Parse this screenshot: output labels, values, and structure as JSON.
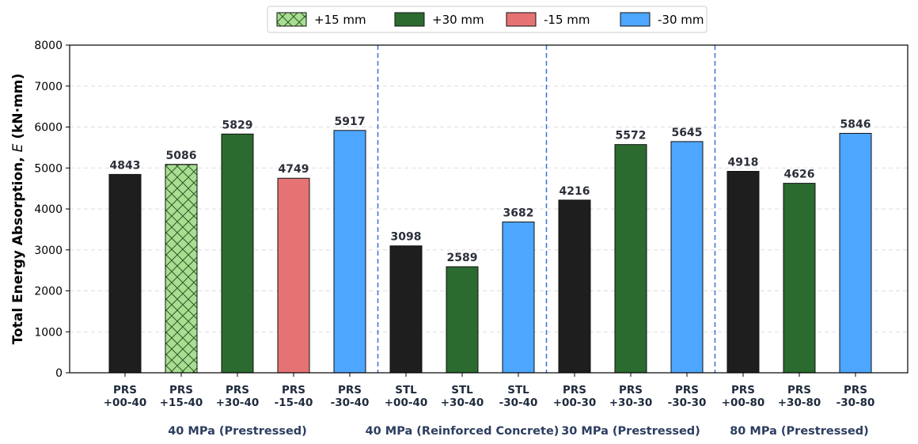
{
  "chart_data": {
    "type": "bar",
    "title": "",
    "xlabel": "",
    "ylabel_prefix": "Total Energy Absorption, ",
    "ylabel_var": "E",
    "ylabel_unit": " (kN·mm)",
    "ylim": [
      0,
      8000
    ],
    "yticks": [
      "0",
      "1000",
      "2000",
      "3000",
      "4000",
      "5000",
      "6000",
      "7000",
      "8000"
    ],
    "grid": "horizontal dashed",
    "legend_position": "top-center",
    "legend": [
      {
        "label": "+15 mm",
        "color": "#a8dd92",
        "hatch": true
      },
      {
        "label": "+30 mm",
        "color": "#2b6b2f",
        "hatch": false
      },
      {
        "label": "-15 mm",
        "color": "#e57373",
        "hatch": false
      },
      {
        "label": "-30 mm",
        "color": "#4da6ff",
        "hatch": false
      }
    ],
    "bars": [
      {
        "line1": "PRS",
        "line2": "+00-40",
        "value": 4843,
        "label": "4843",
        "color": "#1e1e1e",
        "hatch": false
      },
      {
        "line1": "PRS",
        "line2": "+15-40",
        "value": 5086,
        "label": "5086",
        "color": "#a8dd92",
        "hatch": true
      },
      {
        "line1": "PRS",
        "line2": "+30-40",
        "value": 5829,
        "label": "5829",
        "color": "#2b6b2f",
        "hatch": false
      },
      {
        "line1": "PRS",
        "line2": "-15-40",
        "value": 4749,
        "label": "4749",
        "color": "#e57373",
        "hatch": false
      },
      {
        "line1": "PRS",
        "line2": "-30-40",
        "value": 5917,
        "label": "5917",
        "color": "#4da6ff",
        "hatch": false
      },
      {
        "line1": "STL",
        "line2": "+00-40",
        "value": 3098,
        "label": "3098",
        "color": "#1e1e1e",
        "hatch": false
      },
      {
        "line1": "STL",
        "line2": "+30-40",
        "value": 2589,
        "label": "2589",
        "color": "#2b6b2f",
        "hatch": false
      },
      {
        "line1": "STL",
        "line2": "-30-40",
        "value": 3682,
        "label": "3682",
        "color": "#4da6ff",
        "hatch": false
      },
      {
        "line1": "PRS",
        "line2": "+00-30",
        "value": 4216,
        "label": "4216",
        "color": "#1e1e1e",
        "hatch": false
      },
      {
        "line1": "PRS",
        "line2": "+30-30",
        "value": 5572,
        "label": "5572",
        "color": "#2b6b2f",
        "hatch": false
      },
      {
        "line1": "PRS",
        "line2": "-30-30",
        "value": 5645,
        "label": "5645",
        "color": "#4da6ff",
        "hatch": false
      },
      {
        "line1": "PRS",
        "line2": "+00-80",
        "value": 4918,
        "label": "4918",
        "color": "#1e1e1e",
        "hatch": false
      },
      {
        "line1": "PRS",
        "line2": "+30-80",
        "value": 4626,
        "label": "4626",
        "color": "#2b6b2f",
        "hatch": false
      },
      {
        "line1": "PRS",
        "line2": "-30-80",
        "value": 5846,
        "label": "5846",
        "color": "#4da6ff",
        "hatch": false
      }
    ],
    "groups": [
      {
        "label": "40 MPa (Prestressed)",
        "start": 0,
        "end": 4
      },
      {
        "label": "40 MPa (Reinforced Concrete)",
        "start": 5,
        "end": 7
      },
      {
        "label": "30 MPa (Prestressed)",
        "start": 8,
        "end": 10
      },
      {
        "label": "80 MPa (Prestressed)",
        "start": 11,
        "end": 13
      }
    ],
    "separator_color": "#3b6fd6"
  }
}
